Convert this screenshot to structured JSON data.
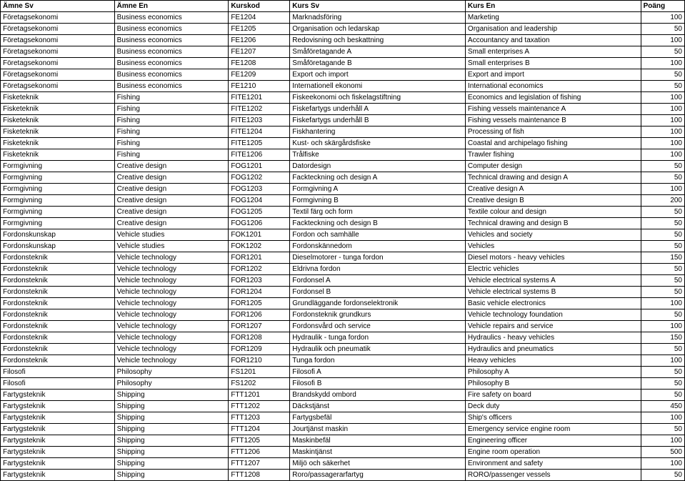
{
  "columns": [
    "Ämne Sv",
    "Ämne En",
    "Kurskod",
    "Kurs Sv",
    "Kurs En",
    "Poäng"
  ],
  "rows": [
    [
      "Företagsekonomi",
      "Business economics",
      "FE1204",
      "Marknadsföring",
      "Marketing",
      "100"
    ],
    [
      "Företagsekonomi",
      "Business economics",
      "FE1205",
      "Organisation och ledarskap",
      "Organisation and leadership",
      "50"
    ],
    [
      "Företagsekonomi",
      "Business economics",
      "FE1206",
      "Redovisning och beskattning",
      "Accountancy and taxation",
      "100"
    ],
    [
      "Företagsekonomi",
      "Business economics",
      "FE1207",
      "Småföretagande A",
      "Small enterprises A",
      "50"
    ],
    [
      "Företagsekonomi",
      "Business economics",
      "FE1208",
      "Småföretagande B",
      "Small enterprises B",
      "100"
    ],
    [
      "Företagsekonomi",
      "Business economics",
      "FE1209",
      "Export och import",
      "Export and import",
      "50"
    ],
    [
      "Företagsekonomi",
      "Business economics",
      "FE1210",
      "Internationell ekonomi",
      "International economics",
      "50"
    ],
    [
      "Fisketeknik",
      "Fishing",
      "FITE1201",
      "Fiskeekonomi och fiskelagstiftning",
      "Economics and legislation of fishing",
      "100"
    ],
    [
      "Fisketeknik",
      "Fishing",
      "FITE1202",
      "Fiskefartygs underhåll A",
      "Fishing vessels maintenance A",
      "100"
    ],
    [
      "Fisketeknik",
      "Fishing",
      "FITE1203",
      "Fiskefartygs underhåll B",
      "Fishing vessels maintenance B",
      "100"
    ],
    [
      "Fisketeknik",
      "Fishing",
      "FITE1204",
      "Fiskhantering",
      "Processing of fish",
      "100"
    ],
    [
      "Fisketeknik",
      "Fishing",
      "FITE1205",
      "Kust- och skärgårdsfiske",
      "Coastal and archipelago fishing",
      "100"
    ],
    [
      "Fisketeknik",
      "Fishing",
      "FITE1206",
      "Trålfiske",
      "Trawler fishing",
      "100"
    ],
    [
      "Formgivning",
      "Creative design",
      "FOG1201",
      "Datordesign",
      "Computer design",
      "50"
    ],
    [
      "Formgivning",
      "Creative design",
      "FOG1202",
      "Fackteckning och design A",
      "Technical drawing and design A",
      "50"
    ],
    [
      "Formgivning",
      "Creative design",
      "FOG1203",
      "Formgivning A",
      "Creative design A",
      "100"
    ],
    [
      "Formgivning",
      "Creative design",
      "FOG1204",
      "Formgivning B",
      "Creative design B",
      "200"
    ],
    [
      "Formgivning",
      "Creative design",
      "FOG1205",
      "Textil färg och form",
      "Textile colour and design",
      "50"
    ],
    [
      "Formgivning",
      "Creative design",
      "FOG1206",
      "Fackteckning och design B",
      "Technical drawing and design B",
      "50"
    ],
    [
      "Fordonskunskap",
      "Vehicle studies",
      "FOK1201",
      "Fordon och samhälle",
      "Vehicles and society",
      "50"
    ],
    [
      "Fordonskunskap",
      "Vehicle studies",
      "FOK1202",
      "Fordonskännedom",
      "Vehicles",
      "50"
    ],
    [
      "Fordonsteknik",
      "Vehicle technology",
      "FOR1201",
      "Dieselmotorer - tunga fordon",
      "Diesel motors - heavy vehicles",
      "150"
    ],
    [
      "Fordonsteknik",
      "Vehicle technology",
      "FOR1202",
      "Eldrivna fordon",
      "Electric vehicles",
      "50"
    ],
    [
      "Fordonsteknik",
      "Vehicle technology",
      "FOR1203",
      "Fordonsel A",
      "Vehicle electrical systems A",
      "50"
    ],
    [
      "Fordonsteknik",
      "Vehicle technology",
      "FOR1204",
      "Fordonsel B",
      "Vehicle electrical systems B",
      "50"
    ],
    [
      "Fordonsteknik",
      "Vehicle technology",
      "FOR1205",
      "Grundläggande fordonselektronik",
      "Basic vehicle electronics",
      "100"
    ],
    [
      "Fordonsteknik",
      "Vehicle technology",
      "FOR1206",
      "Fordonsteknik grundkurs",
      "Vehicle technology foundation",
      "50"
    ],
    [
      "Fordonsteknik",
      "Vehicle technology",
      "FOR1207",
      "Fordonsvård och service",
      "Vehicle repairs and service",
      "100"
    ],
    [
      "Fordonsteknik",
      "Vehicle technology",
      "FOR1208",
      "Hydraulik - tunga fordon",
      "Hydraulics - heavy vehicles",
      "150"
    ],
    [
      "Fordonsteknik",
      "Vehicle technology",
      "FOR1209",
      "Hydraulik och pneumatik",
      "Hydraulics and pneumatics",
      "50"
    ],
    [
      "Fordonsteknik",
      "Vehicle technology",
      "FOR1210",
      "Tunga fordon",
      "Heavy vehicles",
      "100"
    ],
    [
      "Filosofi",
      "Philosophy",
      "FS1201",
      "Filosofi A",
      "Philosophy A",
      "50"
    ],
    [
      "Filosofi",
      "Philosophy",
      "FS1202",
      "Filosofi B",
      "Philosophy B",
      "50"
    ],
    [
      "Fartygsteknik",
      "Shipping",
      "FTT1201",
      "Brandskydd ombord",
      "Fire safety on board",
      "50"
    ],
    [
      "Fartygsteknik",
      "Shipping",
      "FTT1202",
      "Däckstjänst",
      "Deck duty",
      "450"
    ],
    [
      "Fartygsteknik",
      "Shipping",
      "FTT1203",
      "Fartygsbefäl",
      "Ship's officers",
      "100"
    ],
    [
      "Fartygsteknik",
      "Shipping",
      "FTT1204",
      "Jourtjänst maskin",
      "Emergency service engine room",
      "50"
    ],
    [
      "Fartygsteknik",
      "Shipping",
      "FTT1205",
      "Maskinbefäl",
      "Engineering officer",
      "100"
    ],
    [
      "Fartygsteknik",
      "Shipping",
      "FTT1206",
      "Maskintjänst",
      "Engine room operation",
      "500"
    ],
    [
      "Fartygsteknik",
      "Shipping",
      "FTT1207",
      "Miljö och säkerhet",
      "Environment and safety",
      "100"
    ],
    [
      "Fartygsteknik",
      "Shipping",
      "FTT1208",
      "Roro/passagerarfartyg",
      "RORO/passenger vessels",
      "50"
    ]
  ]
}
